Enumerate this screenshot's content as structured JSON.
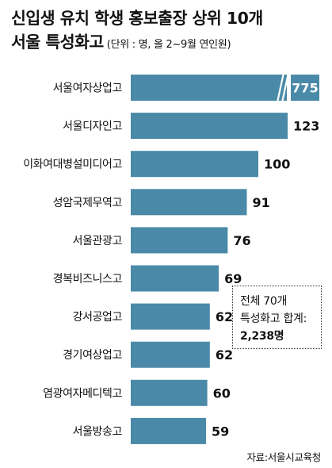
{
  "title": {
    "line1": "신입생 유치 학생 홍보출장 상위 10개",
    "line2": "서울 특성화고",
    "unit": "(단위 : 명, 올 2~9월 연인원)"
  },
  "chart_data": {
    "type": "bar",
    "orientation": "horizontal",
    "categories": [
      "서울여자상업고",
      "서울디자인고",
      "이화여대병설미디어고",
      "성암국제무역고",
      "서울관광고",
      "경복비즈니스고",
      "강서공업고",
      "경기여상업고",
      "염광여자메디텍고",
      "서울방송고"
    ],
    "values": [
      775,
      123,
      100,
      91,
      76,
      69,
      62,
      62,
      60,
      59
    ],
    "value_labels": [
      "775",
      "123",
      "100",
      "91",
      "76",
      "69",
      "62",
      "62",
      "60",
      "59"
    ],
    "axis_break": true,
    "colors": {
      "bar": "#4a8aa8",
      "label_box": "#4a8aa8"
    }
  },
  "note": {
    "line1": "전체 70개",
    "line2": "특성화고 합계:",
    "line3": "2,238명"
  },
  "source": "자료:서울시교육청"
}
